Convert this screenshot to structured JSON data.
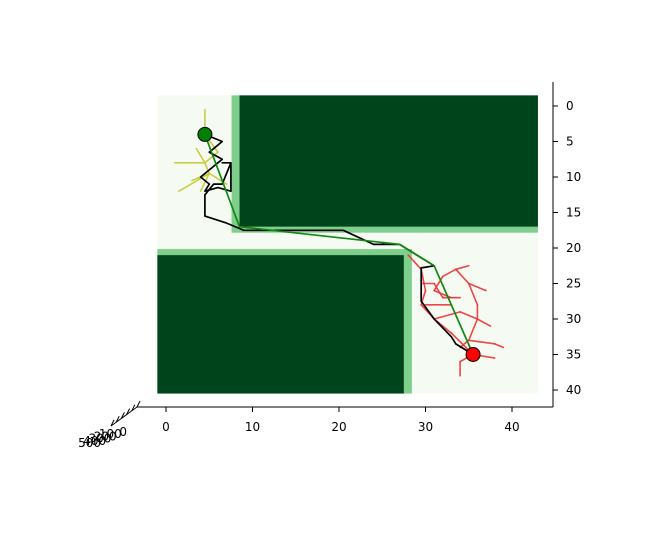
{
  "chart_data": {
    "type": "line",
    "title": "",
    "xlabel": "",
    "ylabel": "",
    "xlim": [
      -1,
      45
    ],
    "ylim": [
      42,
      -2
    ],
    "x_ticks": [
      0,
      10,
      20,
      30,
      40
    ],
    "y_ticks": [
      0,
      5,
      10,
      15,
      20,
      25,
      30,
      35,
      40
    ],
    "z_ticks": [
      "0",
      "100",
      "200",
      "300",
      "400",
      "500"
    ],
    "grid": false,
    "legend": "none",
    "colors": {
      "free_space": "#f5fbf2",
      "obstacle": "#00441b",
      "obstacle_edge": "#7fcf8c",
      "start_tree": "#c8c832",
      "goal_tree": "#ee3333",
      "raw_path": "#000000",
      "smoothed_path": "#118811",
      "start_marker": "#008000",
      "goal_marker": "#ff0000"
    },
    "start": [
      4.5,
      4
    ],
    "goal": [
      35.5,
      35
    ],
    "obstacles": [
      {
        "x0": 8.5,
        "x1": 43,
        "y0": -1.5,
        "y1": 17
      },
      {
        "x0": -1,
        "x1": 27.5,
        "y0": 21,
        "y1": 40.5
      }
    ],
    "series": [
      {
        "type": "tree",
        "segments": [
          [
            [
              4.5,
              4
            ],
            [
              4.5,
              0.5
            ]
          ],
          [
            [
              4.5,
              4
            ],
            [
              6,
              6.5
            ]
          ],
          [
            [
              6,
              6.5
            ],
            [
              4.5,
              8
            ]
          ],
          [
            [
              4.5,
              8
            ],
            [
              1,
              8
            ]
          ],
          [
            [
              4.5,
              8
            ],
            [
              5,
              9.5
            ]
          ],
          [
            [
              5,
              9.5
            ],
            [
              3,
              10.5
            ]
          ],
          [
            [
              5,
              9.5
            ],
            [
              1.5,
              12
            ]
          ],
          [
            [
              5,
              9.5
            ],
            [
              7,
              11
            ]
          ],
          [
            [
              4.5,
              8
            ],
            [
              3.5,
              6
            ]
          ],
          [
            [
              5,
              9.5
            ],
            [
              4,
              12
            ]
          ]
        ]
      },
      {
        "type": "tree",
        "segments": [
          [
            [
              35.5,
              35
            ],
            [
              33,
              32
            ]
          ],
          [
            [
              33,
              32
            ],
            [
              31,
              30
            ]
          ],
          [
            [
              31,
              30
            ],
            [
              29.5,
              28
            ]
          ],
          [
            [
              29.5,
              28
            ],
            [
              30,
              26
            ]
          ],
          [
            [
              30,
              26
            ],
            [
              29.5,
              23
            ]
          ],
          [
            [
              29.5,
              23
            ],
            [
              28,
              21
            ]
          ],
          [
            [
              31,
              30
            ],
            [
              34,
              29
            ]
          ],
          [
            [
              34,
              29
            ],
            [
              36,
              30
            ]
          ],
          [
            [
              36,
              30
            ],
            [
              36,
              28
            ]
          ],
          [
            [
              36,
              28
            ],
            [
              35,
              25
            ]
          ],
          [
            [
              35,
              25
            ],
            [
              33.5,
              23
            ]
          ],
          [
            [
              33.5,
              23
            ],
            [
              32,
              24
            ]
          ],
          [
            [
              33.5,
              23
            ],
            [
              35,
              22.5
            ]
          ],
          [
            [
              35,
              25
            ],
            [
              37,
              26
            ]
          ],
          [
            [
              36,
              30
            ],
            [
              37.5,
              31
            ]
          ],
          [
            [
              35.5,
              35
            ],
            [
              38,
              35.5
            ]
          ],
          [
            [
              36,
              30
            ],
            [
              35,
              33
            ]
          ],
          [
            [
              35,
              33
            ],
            [
              38,
              33.5
            ]
          ],
          [
            [
              35,
              33
            ],
            [
              34,
              34
            ]
          ],
          [
            [
              35.5,
              35
            ],
            [
              34,
              36
            ]
          ],
          [
            [
              34,
              36
            ],
            [
              34,
              38
            ]
          ],
          [
            [
              32,
              27
            ],
            [
              34,
              27
            ]
          ],
          [
            [
              31,
              25
            ],
            [
              32,
              27
            ]
          ],
          [
            [
              29.5,
              25
            ],
            [
              31,
              25
            ]
          ],
          [
            [
              32,
              24
            ],
            [
              31,
              26
            ]
          ],
          [
            [
              31,
              26
            ],
            [
              33,
              27
            ]
          ],
          [
            [
              38,
              33.5
            ],
            [
              39,
              34
            ]
          ],
          [
            [
              30,
              28
            ],
            [
              33,
              28
            ]
          ]
        ]
      },
      {
        "type": "path",
        "points": [
          [
            4.5,
            4
          ],
          [
            6.5,
            5
          ],
          [
            5,
            6.5
          ],
          [
            6.5,
            7.5
          ],
          [
            5,
            9
          ],
          [
            4,
            10
          ],
          [
            5,
            11
          ],
          [
            4.5,
            12
          ],
          [
            6,
            11.5
          ],
          [
            7.5,
            12
          ],
          [
            7.5,
            10
          ],
          [
            7.5,
            8
          ],
          [
            6.5,
            8
          ],
          [
            7.5,
            8
          ],
          [
            6.5,
            11
          ],
          [
            5.5,
            11
          ],
          [
            4.5,
            12.5
          ],
          [
            4.5,
            15.5
          ],
          [
            7,
            16.5
          ],
          [
            9,
            17.5
          ],
          [
            20.5,
            17.5
          ],
          [
            24,
            19.5
          ],
          [
            27,
            19.5
          ],
          [
            31,
            22.5
          ],
          [
            29.5,
            22.8
          ],
          [
            29.5,
            25.5
          ],
          [
            29.5,
            27.5
          ],
          [
            31,
            30
          ],
          [
            33,
            32.5
          ],
          [
            33.5,
            33.5
          ],
          [
            35.5,
            35
          ]
        ]
      },
      {
        "type": "path",
        "points": [
          [
            4.5,
            4
          ],
          [
            8.5,
            17
          ],
          [
            27,
            19.5
          ],
          [
            31,
            22.5
          ],
          [
            35.5,
            35
          ]
        ]
      }
    ]
  }
}
